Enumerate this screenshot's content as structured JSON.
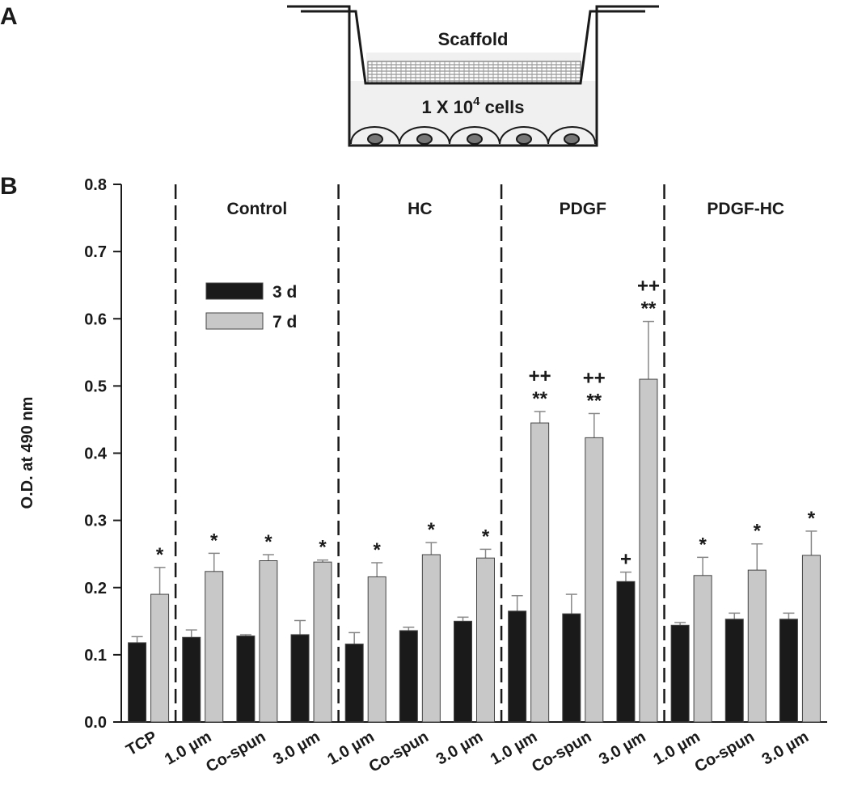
{
  "panel_labels": [
    "A",
    "B"
  ],
  "diagram": {
    "top_label": "Scaffold",
    "bottom_label": [
      "1 X 10",
      "4",
      " cells"
    ]
  },
  "chart_data": {
    "type": "bar",
    "ylabel": "O.D. at 490 nm",
    "categories": [
      "TCP",
      "1.0 µm",
      "Co-spun",
      "3.0 µm",
      "1.0 µm",
      "Co-spun",
      "3.0 µm",
      "1.0 µm",
      "Co-spun",
      "3.0 µm",
      "1.0 µm",
      "Co-spun",
      "3.0 µm"
    ],
    "groups": [
      {
        "size": 1
      },
      {
        "name": "Control",
        "size": 3
      },
      {
        "name": "HC",
        "size": 3
      },
      {
        "name": "PDGF",
        "size": 3
      },
      {
        "name": "PDGF-HC",
        "size": 3
      }
    ],
    "series": [
      {
        "name": "3 d",
        "color": "#1a1a1a",
        "values": [
          0.118,
          0.126,
          0.128,
          0.13,
          0.116,
          0.136,
          0.15,
          0.165,
          0.161,
          0.209,
          0.144,
          0.153,
          0.153
        ],
        "errors": [
          0.009,
          0.011,
          0.002,
          0.021,
          0.017,
          0.005,
          0.006,
          0.023,
          0.029,
          0.014,
          0.004,
          0.009,
          0.009
        ],
        "annotations": [
          null,
          null,
          null,
          null,
          null,
          null,
          null,
          null,
          null,
          "+",
          null,
          null,
          null
        ]
      },
      {
        "name": "7 d",
        "color": "#c8c8c8",
        "values": [
          0.19,
          0.224,
          0.24,
          0.238,
          0.216,
          0.249,
          0.244,
          0.445,
          0.423,
          0.51,
          0.218,
          0.226,
          0.248
        ],
        "errors": [
          0.04,
          0.027,
          0.009,
          0.003,
          0.021,
          0.018,
          0.013,
          0.017,
          0.036,
          0.086,
          0.027,
          0.039,
          0.036
        ],
        "annotations": [
          "*",
          "*",
          "*",
          "*",
          "*",
          "*",
          "*",
          "**",
          "**",
          "**",
          "*",
          "*",
          "*"
        ],
        "annotations_upper": [
          null,
          null,
          null,
          null,
          null,
          null,
          null,
          "++",
          "++",
          "++",
          null,
          null,
          null
        ]
      }
    ],
    "ylim": [
      0,
      0.8
    ],
    "yticks": [
      {
        "value": 0,
        "label": "0.0"
      },
      0.1,
      0.2,
      0.3,
      0.4,
      0.5,
      0.6,
      0.7,
      0.8
    ]
  }
}
